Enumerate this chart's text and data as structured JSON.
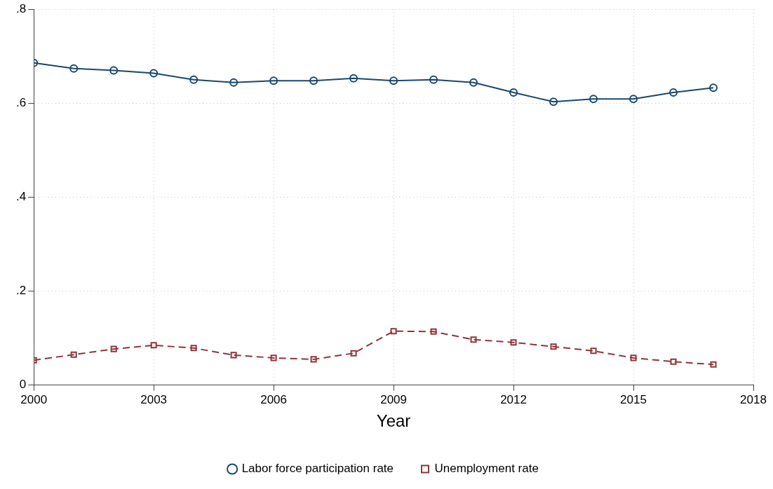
{
  "chart_data": {
    "type": "line",
    "xlabel": "Year",
    "x": [
      2000,
      2001,
      2002,
      2003,
      2004,
      2005,
      2006,
      2007,
      2008,
      2009,
      2010,
      2011,
      2012,
      2013,
      2014,
      2015,
      2016,
      2017
    ],
    "series": [
      {
        "name": "Labor force participation rate",
        "color": "#1a476f",
        "marker": "circle",
        "line_style": "solid",
        "values": [
          0.686,
          0.674,
          0.67,
          0.664,
          0.65,
          0.644,
          0.648,
          0.648,
          0.653,
          0.648,
          0.65,
          0.644,
          0.623,
          0.603,
          0.609,
          0.609,
          0.623,
          0.633
        ]
      },
      {
        "name": "Unemployment rate",
        "color": "#90353b",
        "marker": "square",
        "line_style": "dashed",
        "values": [
          0.053,
          0.065,
          0.077,
          0.085,
          0.079,
          0.064,
          0.058,
          0.055,
          0.068,
          0.115,
          0.114,
          0.097,
          0.091,
          0.082,
          0.073,
          0.058,
          0.05,
          0.044
        ]
      }
    ],
    "xlim": [
      2000,
      2018
    ],
    "xticks": [
      2000,
      2003,
      2006,
      2009,
      2012,
      2015,
      2018
    ],
    "ylim": [
      0,
      0.8
    ],
    "yticks": [
      {
        "value": 0,
        "label": "0"
      },
      {
        "value": 0.2,
        "label": ".2"
      },
      {
        "value": 0.4,
        "label": ".4"
      },
      {
        "value": 0.6,
        "label": ".6"
      },
      {
        "value": 0.8,
        "label": ".8"
      }
    ],
    "grid": true,
    "legend": "bottom"
  }
}
